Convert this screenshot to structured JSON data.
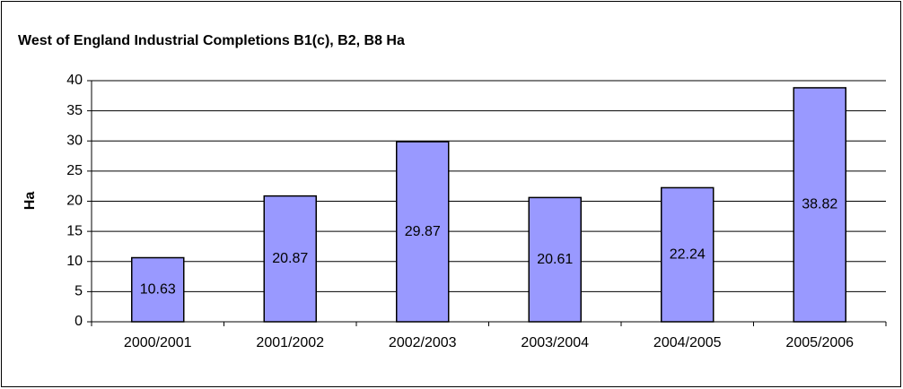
{
  "chart_data": {
    "type": "bar",
    "title": "West of England Industrial Completions B1(c), B2, B8 Ha",
    "y_label": "Ha",
    "categories": [
      "2000/2001",
      "2001/2002",
      "2002/2003",
      "2003/2004",
      "2004/2005",
      "2005/2006"
    ],
    "values": [
      10.63,
      20.87,
      29.87,
      20.61,
      22.24,
      38.82
    ],
    "color": "#9999ff",
    "ylim": [
      0,
      40
    ],
    "yticks": [
      0,
      5,
      10,
      15,
      20,
      25,
      30,
      35,
      40
    ],
    "grid": true
  }
}
